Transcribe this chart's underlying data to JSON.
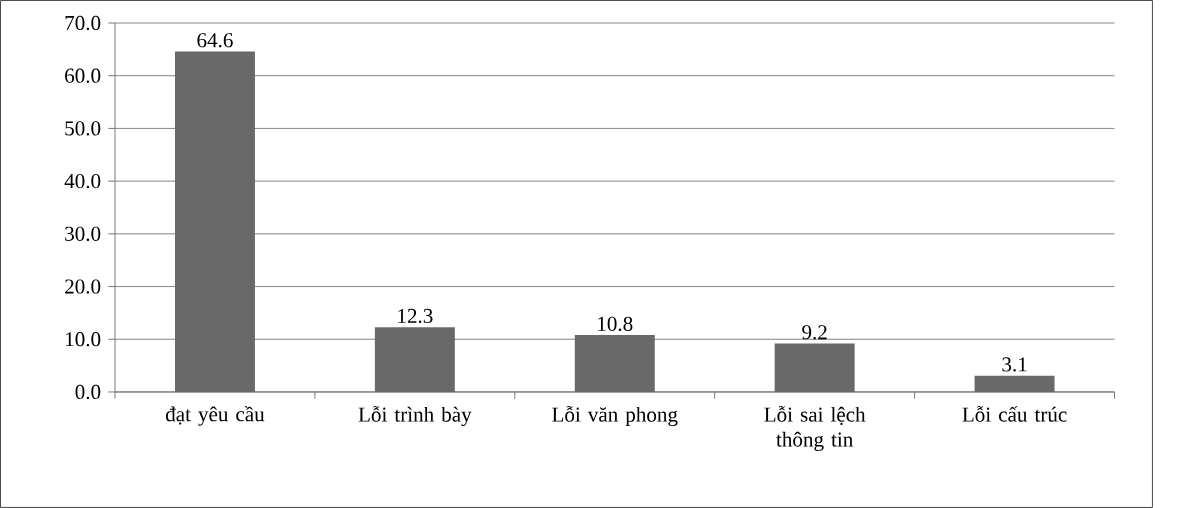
{
  "chart_data": {
    "type": "bar",
    "categories": [
      "đạt yêu cầu",
      "Lỗi trình bày",
      "Lỗi văn phong",
      "Lỗi sai lệch thông tin",
      "Lỗi cấu trúc"
    ],
    "values": [
      64.6,
      12.3,
      10.8,
      9.2,
      3.1
    ],
    "color": "#696969",
    "ylim": [
      0,
      70
    ],
    "yticks": [
      {
        "value": 0,
        "label": "0.0"
      },
      {
        "value": 10,
        "label": "10.0"
      },
      {
        "value": 20,
        "label": "20.0"
      },
      {
        "value": 30,
        "label": "30.0"
      },
      {
        "value": 40,
        "label": "40.0"
      },
      {
        "value": 50,
        "label": "50.0"
      },
      {
        "value": 60,
        "label": "60.0"
      },
      {
        "value": 70,
        "label": "70.0"
      }
    ],
    "grid": "y",
    "data_labels": true
  }
}
